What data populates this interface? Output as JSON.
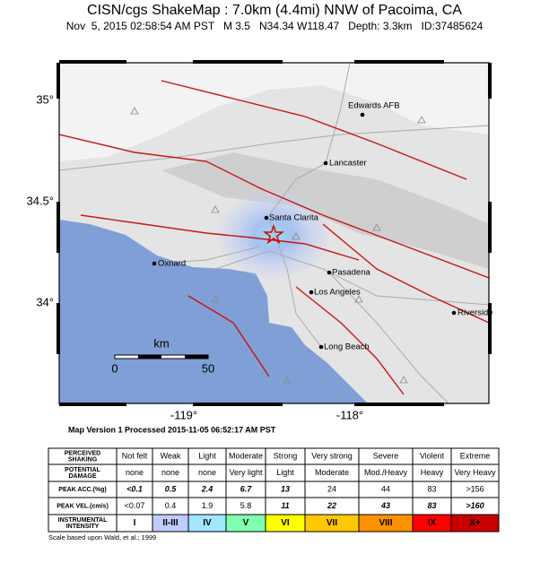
{
  "header": {
    "title": "CISN/cgs ShakeMap : 7.0km (4.4mi) NNW of Pacoima, CA",
    "subtitle": "Nov  5, 2015 02:58:54 AM PST   M 3.5   N34.34 W118.47   Depth: 3.3km   ID:37485624"
  },
  "map": {
    "lat_labels": [
      "35°",
      "34.5°",
      "34°"
    ],
    "lon_labels": [
      "-119°",
      "-118°"
    ],
    "cities": [
      "Edwards AFB",
      "Lancaster",
      "Santa Clarita",
      "Oxnard",
      "Pasadena",
      "Los Angeles",
      "Riverside",
      "Long Beach"
    ],
    "scale": {
      "unit": "km",
      "start": "0",
      "end": "50"
    }
  },
  "version": "Map Version 1 Processed 2015-11-05 06:52:17 AM PST",
  "table": {
    "row_labels": [
      [
        "PERCEIVED",
        "SHAKING"
      ],
      [
        "POTENTIAL",
        "DAMAGE"
      ],
      [
        "PEAK ACC.(%g)"
      ],
      [
        "PEAK VEL.(cm/s)"
      ],
      [
        "INSTRUMENTAL",
        "INTENSITY"
      ]
    ],
    "rows": [
      [
        "Not felt",
        "Weak",
        "Light",
        "Moderate",
        "Strong",
        "Very strong",
        "Severe",
        "Violent",
        "Extreme"
      ],
      [
        "none",
        "none",
        "none",
        "Very light",
        "Light",
        "Moderate",
        "Mod./Heavy",
        "Heavy",
        "Very Heavy"
      ],
      [
        "<0.1",
        "0.5",
        "2.4",
        "6.7",
        "13",
        "24",
        "44",
        "83",
        ">156"
      ],
      [
        "<0.07",
        "0.4",
        "1.9",
        "5.8",
        "11",
        "22",
        "43",
        "83",
        ">160"
      ],
      [
        "I",
        "II-III",
        "IV",
        "V",
        "VI",
        "VII",
        "VIII",
        "IX",
        "X+"
      ]
    ]
  },
  "footnote": "Scale based upon Wald, et al.; 1999"
}
